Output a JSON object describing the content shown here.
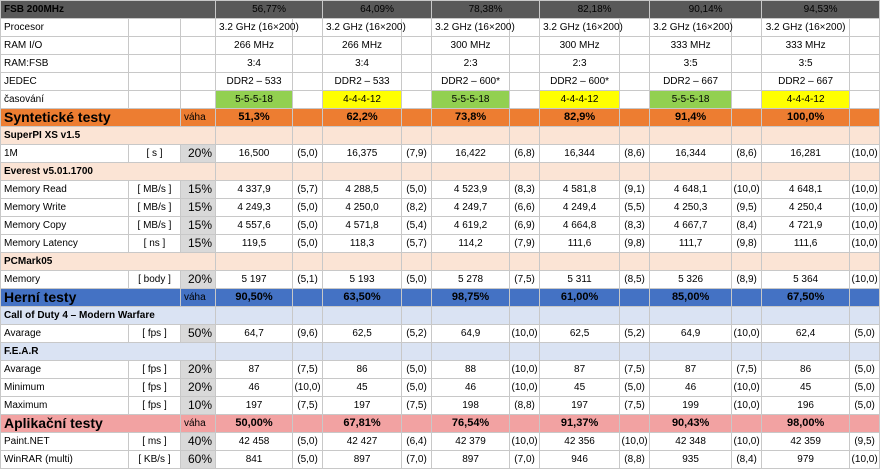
{
  "header": {
    "title": "FSB 200MHz",
    "percents": [
      "56,77%",
      "64,09%",
      "78,38%",
      "82,18%",
      "90,14%",
      "94,53%"
    ]
  },
  "config_rows": [
    {
      "label": "Procesor",
      "values": [
        "3.2 GHz (16×200)",
        "3.2 GHz (16×200)",
        "3.2 GHz (16×200)",
        "3.2 GHz (16×200)",
        "3.2 GHz (16×200)",
        "3.2 GHz (16×200)"
      ]
    },
    {
      "label": "RAM I/O",
      "values": [
        "266 MHz",
        "266 MHz",
        "300 MHz",
        "300 MHz",
        "333 MHz",
        "333 MHz"
      ]
    },
    {
      "label": "RAM:FSB",
      "values": [
        "3:4",
        "3:4",
        "2:3",
        "2:3",
        "3:5",
        "3:5"
      ]
    },
    {
      "label": "JEDEC",
      "values": [
        "DDR2 – 533",
        "DDR2 – 533",
        "DDR2 – 600*",
        "DDR2 – 600*",
        "DDR2 – 667",
        "DDR2 – 667"
      ]
    }
  ],
  "timing": {
    "label": "časování",
    "values": [
      "5-5-5-18",
      "4-4-4-12",
      "5-5-5-18",
      "4-4-4-12",
      "5-5-5-18",
      "4-4-4-12"
    ],
    "colors": [
      "#92d050",
      "#ffff00",
      "#92d050",
      "#ffff00",
      "#92d050",
      "#ffff00"
    ]
  },
  "sections": [
    {
      "kind": "orange",
      "title": "Syntetické testy",
      "vaha": "váha",
      "values": [
        "51,3%",
        "62,2%",
        "73,8%",
        "82,9%",
        "91,4%",
        "100,0%"
      ],
      "groups": [
        {
          "name": "SuperPI XS v1.5",
          "rows": [
            {
              "label": "1M",
              "unit": "[ s ]",
              "weight": "20%",
              "cells": [
                [
                  "16,500",
                  "(5,0)"
                ],
                [
                  "16,375",
                  "(7,9)"
                ],
                [
                  "16,422",
                  "(6,8)"
                ],
                [
                  "16,344",
                  "(8,6)"
                ],
                [
                  "16,344",
                  "(8,6)"
                ],
                [
                  "16,281",
                  "(10,0)"
                ]
              ]
            }
          ]
        },
        {
          "name": "Everest v5.01.1700",
          "rows": [
            {
              "label": "Memory Read",
              "unit": "[ MB/s ]",
              "weight": "15%",
              "cells": [
                [
                  "4 337,9",
                  "(5,7)"
                ],
                [
                  "4 288,5",
                  "(5,0)"
                ],
                [
                  "4 523,9",
                  "(8,3)"
                ],
                [
                  "4 581,8",
                  "(9,1)"
                ],
                [
                  "4 648,1",
                  "(10,0)"
                ],
                [
                  "4 648,1",
                  "(10,0)"
                ]
              ]
            },
            {
              "label": "Memory Write",
              "unit": "[ MB/s ]",
              "weight": "15%",
              "cells": [
                [
                  "4 249,3",
                  "(5,0)"
                ],
                [
                  "4 250,0",
                  "(8,2)"
                ],
                [
                  "4 249,7",
                  "(6,6)"
                ],
                [
                  "4 249,4",
                  "(5,5)"
                ],
                [
                  "4 250,3",
                  "(9,5)"
                ],
                [
                  "4 250,4",
                  "(10,0)"
                ]
              ]
            },
            {
              "label": "Memory Copy",
              "unit": "[ MB/s ]",
              "weight": "15%",
              "cells": [
                [
                  "4 557,6",
                  "(5,0)"
                ],
                [
                  "4 571,8",
                  "(5,4)"
                ],
                [
                  "4 619,2",
                  "(6,9)"
                ],
                [
                  "4 664,8",
                  "(8,3)"
                ],
                [
                  "4 667,7",
                  "(8,4)"
                ],
                [
                  "4 721,9",
                  "(10,0)"
                ]
              ]
            },
            {
              "label": "Memory Latency",
              "unit": "[ ns ]",
              "weight": "15%",
              "cells": [
                [
                  "119,5",
                  "(5,0)"
                ],
                [
                  "118,3",
                  "(5,7)"
                ],
                [
                  "114,2",
                  "(7,9)"
                ],
                [
                  "111,6",
                  "(9,8)"
                ],
                [
                  "111,7",
                  "(9,8)"
                ],
                [
                  "111,6",
                  "(10,0)"
                ]
              ]
            }
          ]
        },
        {
          "name": "PCMark05",
          "rows": [
            {
              "label": "Memory",
              "unit": "[ body ]",
              "weight": "20%",
              "cells": [
                [
                  "5 197",
                  "(5,1)"
                ],
                [
                  "5 193",
                  "(5,0)"
                ],
                [
                  "5 278",
                  "(7,5)"
                ],
                [
                  "5 311",
                  "(8,5)"
                ],
                [
                  "5 326",
                  "(8,9)"
                ],
                [
                  "5 364",
                  "(10,0)"
                ]
              ]
            }
          ]
        }
      ]
    },
    {
      "kind": "blue",
      "title": "Herní testy",
      "vaha": "váha",
      "values": [
        "90,50%",
        "63,50%",
        "98,75%",
        "61,00%",
        "85,00%",
        "67,50%"
      ],
      "groups": [
        {
          "name": "Call of Duty 4 – Modern Warfare",
          "rows": [
            {
              "label": "Avarage",
              "unit": "[ fps ]",
              "weight": "50%",
              "cells": [
                [
                  "64,7",
                  "(9,6)"
                ],
                [
                  "62,5",
                  "(5,2)"
                ],
                [
                  "64,9",
                  "(10,0)"
                ],
                [
                  "62,5",
                  "(5,2)"
                ],
                [
                  "64,9",
                  "(10,0)"
                ],
                [
                  "62,4",
                  "(5,0)"
                ]
              ]
            }
          ]
        },
        {
          "name": "F.E.A.R",
          "rows": [
            {
              "label": "Avarage",
              "unit": "[ fps ]",
              "weight": "20%",
              "cells": [
                [
                  "87",
                  "(7,5)"
                ],
                [
                  "86",
                  "(5,0)"
                ],
                [
                  "88",
                  "(10,0)"
                ],
                [
                  "87",
                  "(7,5)"
                ],
                [
                  "87",
                  "(7,5)"
                ],
                [
                  "86",
                  "(5,0)"
                ]
              ]
            },
            {
              "label": "Minimum",
              "unit": "[ fps ]",
              "weight": "20%",
              "cells": [
                [
                  "46",
                  "(10,0)"
                ],
                [
                  "45",
                  "(5,0)"
                ],
                [
                  "46",
                  "(10,0)"
                ],
                [
                  "45",
                  "(5,0)"
                ],
                [
                  "46",
                  "(10,0)"
                ],
                [
                  "45",
                  "(5,0)"
                ]
              ]
            },
            {
              "label": "Maximum",
              "unit": "[ fps ]",
              "weight": "10%",
              "cells": [
                [
                  "197",
                  "(7,5)"
                ],
                [
                  "197",
                  "(7,5)"
                ],
                [
                  "198",
                  "(8,8)"
                ],
                [
                  "197",
                  "(7,5)"
                ],
                [
                  "199",
                  "(10,0)"
                ],
                [
                  "196",
                  "(5,0)"
                ]
              ]
            }
          ]
        }
      ]
    },
    {
      "kind": "pink",
      "title": "Aplikační testy",
      "vaha": "váha",
      "values": [
        "50,00%",
        "67,81%",
        "76,54%",
        "91,37%",
        "90,43%",
        "98,00%"
      ],
      "groups": [
        {
          "name": null,
          "rows": [
            {
              "label": "Paint.NET",
              "unit": "[ ms ]",
              "weight": "40%",
              "cells": [
                [
                  "42 458",
                  "(5,0)"
                ],
                [
                  "42 427",
                  "(6,4)"
                ],
                [
                  "42 379",
                  "(10,0)"
                ],
                [
                  "42 356",
                  "(10,0)"
                ],
                [
                  "42 348",
                  "(10,0)"
                ],
                [
                  "42 359",
                  "(9,5)"
                ]
              ]
            },
            {
              "label": "WinRAR (multi)",
              "unit": "[ KB/s ]",
              "weight": "60%",
              "cells": [
                [
                  "841",
                  "(5,0)"
                ],
                [
                  "897",
                  "(7,0)"
                ],
                [
                  "897",
                  "(7,0)"
                ],
                [
                  "946",
                  "(8,8)"
                ],
                [
                  "935",
                  "(8,4)"
                ],
                [
                  "979",
                  "(10,0)"
                ]
              ]
            }
          ]
        }
      ]
    }
  ]
}
